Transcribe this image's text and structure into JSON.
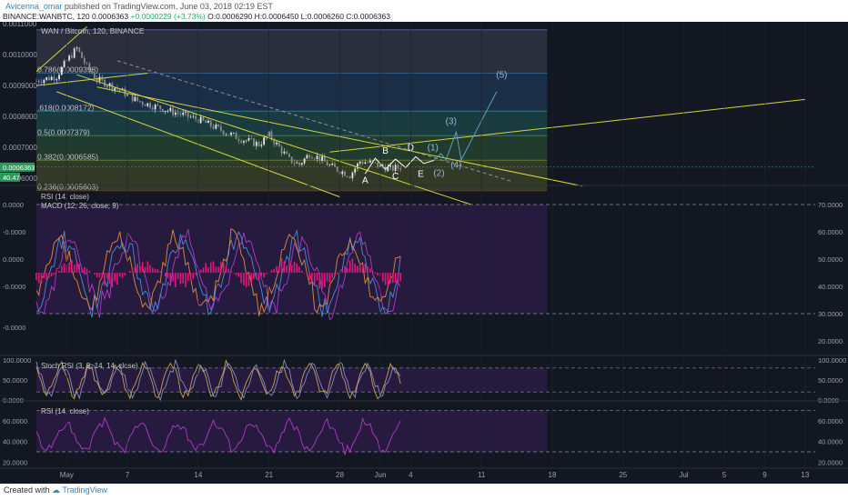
{
  "header": {
    "author": "Avicenna_omar",
    "published": "published on TradingView.com, June 03, 2018 02:19 EST",
    "symbol_line": "BINANCE:WANBTC, 120",
    "price_last": "0.0006363",
    "change": "+0.0000229 (+3.73%)",
    "ohlc": "O:0.0006290 H:0.0006450 L:0.0006260 C:0.0006363"
  },
  "footer": {
    "created_with": "Created with",
    "brand": "TradingView"
  },
  "colors": {
    "background": "#ffffff",
    "up": "#2aa86b",
    "trend": "#d4d43a",
    "rsi_fill": "#2a1a4a",
    "macd": "#e0187a",
    "stoch": "#8a8ac8",
    "rsi_line": "#b03ac8"
  },
  "chart_data": [
    {
      "type": "candlestick",
      "title": "WAN / Bitcoin, 120, BINANCE",
      "x_ticks": [
        "May",
        "7",
        "14",
        "21",
        "28",
        "Jun",
        "4",
        "11",
        "18",
        "25",
        "Jul",
        "5",
        "9",
        "13"
      ],
      "x_tick_days": [
        1,
        7,
        14,
        21,
        28,
        32,
        35,
        42,
        49,
        56,
        62,
        66,
        70,
        74
      ],
      "x_range_days": [
        -2,
        75
      ],
      "y_ticks": [
        "0.0011000",
        "0.0010000",
        "0.0009000",
        "0.0008000",
        "0.0007000",
        "0.0006000"
      ],
      "ylim": [
        0.00058,
        0.0011
      ],
      "last_price_label": "0.0006363",
      "last_volume_label": "40.47",
      "close_path": [
        [
          -2,
          0.000915
        ],
        [
          0,
          0.00093
        ],
        [
          1,
          0.00098
        ],
        [
          2,
          0.00102
        ],
        [
          3,
          0.00096
        ],
        [
          4,
          0.00092
        ],
        [
          6,
          0.00089
        ],
        [
          8,
          0.00085
        ],
        [
          10,
          0.00083
        ],
        [
          12,
          0.00081
        ],
        [
          14,
          0.00079
        ],
        [
          16,
          0.00076
        ],
        [
          18,
          0.00073
        ],
        [
          20,
          0.00071
        ],
        [
          21,
          0.00074
        ],
        [
          22,
          0.0007
        ],
        [
          23,
          0.00066
        ],
        [
          24,
          0.000645
        ],
        [
          25,
          0.00068
        ],
        [
          26,
          0.000665
        ],
        [
          27,
          0.00064
        ],
        [
          28,
          0.000625
        ],
        [
          29,
          0.00061
        ],
        [
          30,
          0.000655
        ],
        [
          31,
          0.00065
        ],
        [
          32,
          0.00064
        ],
        [
          33,
          0.00063
        ],
        [
          34,
          0.000636
        ]
      ],
      "fib_levels": [
        {
          "label": "",
          "price": 0.00108
        },
        {
          "label": "0.786(0.0009398)",
          "price": 0.0009398
        },
        {
          "label": ".618(0.0008172)",
          "price": 0.0008172
        },
        {
          "label": "0.5(0.0007379)",
          "price": 0.0007379
        },
        {
          "label": "0.382(0.0006585)",
          "price": 0.0006585
        },
        {
          "label": "0.236(0.0005603)",
          "price": 0.0005603
        }
      ],
      "trendlines": [
        {
          "p1": [
            -2,
            0.000945
          ],
          "p2": [
            3,
            0.00109
          ]
        },
        {
          "p1": [
            -2,
            0.0009
          ],
          "p2": [
            9,
            0.00094
          ]
        },
        {
          "p1": [
            2,
            0.000935
          ],
          "p2": [
            41,
            0.000515
          ]
        },
        {
          "p1": [
            4,
            0.000895
          ],
          "p2": [
            52,
            0.000575
          ]
        },
        {
          "p1": [
            27,
            0.000685
          ],
          "p2": [
            74,
            0.000855
          ]
        },
        {
          "p1": [
            0,
            0.00088
          ],
          "p2": [
            28,
            0.00054
          ]
        }
      ],
      "dashed_line": {
        "p1": [
          6,
          0.00098
        ],
        "p2": [
          45,
          0.00059
        ]
      },
      "wave_labels": [
        {
          "text": "A",
          "day": 30.5,
          "price": 0.000585
        },
        {
          "text": "B",
          "day": 32.5,
          "price": 0.00068
        },
        {
          "text": "C",
          "day": 33.5,
          "price": 0.000598
        },
        {
          "text": "D",
          "day": 35,
          "price": 0.00069
        },
        {
          "text": "E",
          "day": 36,
          "price": 0.000605
        },
        {
          "text": "(1)",
          "day": 37.2,
          "price": 0.00069
        },
        {
          "text": "(2)",
          "day": 37.8,
          "price": 0.000608
        },
        {
          "text": "(3)",
          "day": 39,
          "price": 0.000775
        },
        {
          "text": "(4)",
          "day": 39.5,
          "price": 0.000635
        },
        {
          "text": "(5)",
          "day": 44,
          "price": 0.000925
        }
      ]
    },
    {
      "type": "line",
      "title": "RSI (14, close)",
      "legend": [
        "MACD (12, 26, close, 9)"
      ],
      "left_ticks": [
        "0.0000",
        "-0.0000",
        "0.0000",
        "-0.0000",
        "-0.0000"
      ],
      "right_ticks": [
        "70.0000",
        "60.0000",
        "50.0000",
        "40.0000",
        "30.0000",
        "20.0000"
      ],
      "ylim": [
        15,
        75
      ],
      "bands": [
        70,
        30
      ]
    },
    {
      "type": "line",
      "title": "Stoch RSI (3, 3, 14, 14, close)",
      "left_ticks": [
        "100.0000",
        "50.0000",
        "0.0000"
      ],
      "right_ticks": [
        "100.0000",
        "50.0000",
        "0.0000"
      ],
      "ylim": [
        0,
        100
      ],
      "bands": [
        80,
        20
      ]
    },
    {
      "type": "line",
      "title": "RSI (14, close)",
      "left_ticks": [
        "60.0000",
        "40.0000",
        "20.0000"
      ],
      "right_ticks": [
        "60.0000",
        "40.0000",
        "20.0000"
      ],
      "ylim": [
        15,
        75
      ],
      "bands": [
        70,
        30
      ]
    }
  ]
}
